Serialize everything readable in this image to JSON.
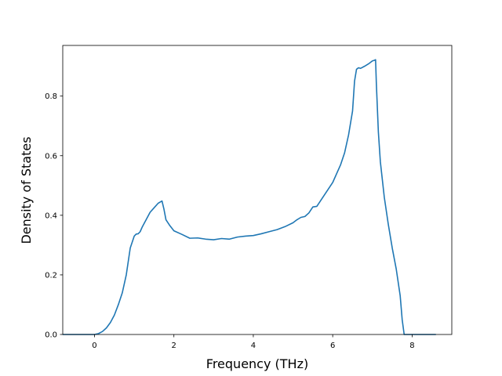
{
  "chart_data": {
    "type": "line",
    "title": "",
    "xlabel": "Frequency (THz)",
    "ylabel": "Density of States",
    "xlim": [
      -0.8,
      9.0
    ],
    "ylim": [
      0.0,
      0.97
    ],
    "grid": false,
    "legend": "none",
    "xticks": [
      0,
      2,
      4,
      6,
      8
    ],
    "yticks": [
      0.0,
      0.2,
      0.4,
      0.6,
      0.8
    ],
    "xtick_labels": [
      "0",
      "2",
      "4",
      "6",
      "8"
    ],
    "ytick_labels": [
      "0.0",
      "0.2",
      "0.4",
      "0.6",
      "0.8"
    ],
    "series": [
      {
        "color": "#1f77b4",
        "x": [
          -0.8,
          -0.5,
          -0.2,
          0.0,
          0.1,
          0.2,
          0.3,
          0.4,
          0.5,
          0.6,
          0.7,
          0.8,
          0.9,
          1.0,
          1.05,
          1.1,
          1.15,
          1.2,
          1.3,
          1.4,
          1.5,
          1.6,
          1.7,
          1.75,
          1.8,
          1.9,
          2.0,
          2.2,
          2.4,
          2.6,
          2.8,
          3.0,
          3.2,
          3.4,
          3.6,
          3.8,
          4.0,
          4.2,
          4.4,
          4.6,
          4.8,
          5.0,
          5.1,
          5.2,
          5.3,
          5.4,
          5.5,
          5.6,
          5.7,
          5.8,
          5.9,
          6.0,
          6.1,
          6.2,
          6.3,
          6.4,
          6.45,
          6.5,
          6.55,
          6.6,
          6.65,
          6.7,
          6.8,
          6.9,
          7.0,
          7.05,
          7.08,
          7.1,
          7.15,
          7.2,
          7.3,
          7.4,
          7.5,
          7.6,
          7.7,
          7.75,
          7.8,
          7.9,
          8.2,
          8.6
        ],
        "y": [
          0.0,
          0.0,
          0.0,
          0.0,
          0.003,
          0.01,
          0.022,
          0.04,
          0.065,
          0.1,
          0.14,
          0.2,
          0.29,
          0.33,
          0.337,
          0.338,
          0.345,
          0.36,
          0.385,
          0.41,
          0.425,
          0.44,
          0.448,
          0.42,
          0.385,
          0.365,
          0.348,
          0.336,
          0.323,
          0.324,
          0.32,
          0.318,
          0.322,
          0.32,
          0.327,
          0.33,
          0.332,
          0.338,
          0.345,
          0.352,
          0.362,
          0.375,
          0.385,
          0.393,
          0.396,
          0.408,
          0.428,
          0.43,
          0.45,
          0.47,
          0.49,
          0.51,
          0.54,
          0.57,
          0.61,
          0.67,
          0.71,
          0.75,
          0.85,
          0.89,
          0.895,
          0.893,
          0.9,
          0.908,
          0.918,
          0.92,
          0.922,
          0.84,
          0.68,
          0.58,
          0.46,
          0.37,
          0.29,
          0.22,
          0.13,
          0.05,
          0.0,
          0.0,
          0.0,
          0.0
        ]
      }
    ]
  }
}
